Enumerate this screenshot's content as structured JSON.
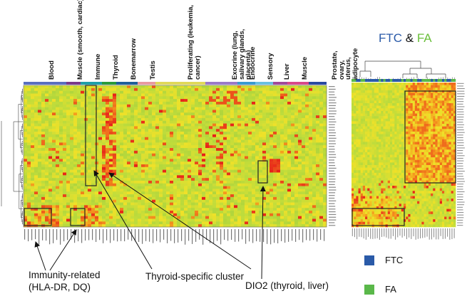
{
  "left_heatmap": {
    "tissue_groups": [
      {
        "label": "Blood",
        "color": "#5a6fbf"
      },
      {
        "label": "Muscle (smooth, cardiac)",
        "color": "#7a3a8a"
      },
      {
        "label": "Immune",
        "color": "#1f9fa8"
      },
      {
        "label": "Thyroid",
        "color": "#2a9a3a"
      },
      {
        "label": "Bonemarrow",
        "color": "#1f5f9a"
      },
      {
        "label": "Testis",
        "color": "#e89aa0"
      },
      {
        "label": "Proliferating (leukemia, cancer)",
        "color": "#e0d85a"
      },
      {
        "label": "Exocrine (lung, salivary glands, placenta)",
        "color": "#9a7ac8"
      },
      {
        "label": "Endocrine",
        "color": "#3a9ad0"
      },
      {
        "label": "Sensory",
        "color": "#6ac0e0"
      },
      {
        "label": "Liver",
        "color": "#a04a9a"
      },
      {
        "label": "Muscle",
        "color": "#d84a8a"
      },
      {
        "label": "Prostate, ovary, uterus, adipocyte",
        "color": "#2a4aa0"
      }
    ]
  },
  "right_heatmap": {
    "title_part1": "FTC",
    "title_amp": " & ",
    "title_part2": "FA",
    "title_color1": "#2a5aa8",
    "title_color2": "#6abf3a"
  },
  "annotations": {
    "immunity": "Immunity-related\n(HLA-DR, DQ)",
    "thyroid": "Thyroid-specific cluster",
    "dio2": "DIO2 (thyroid, liver)"
  },
  "legend": [
    {
      "label": "FTC",
      "color": "#2a5aa8"
    },
    {
      "label": "FA",
      "color": "#5ab84a"
    }
  ]
}
